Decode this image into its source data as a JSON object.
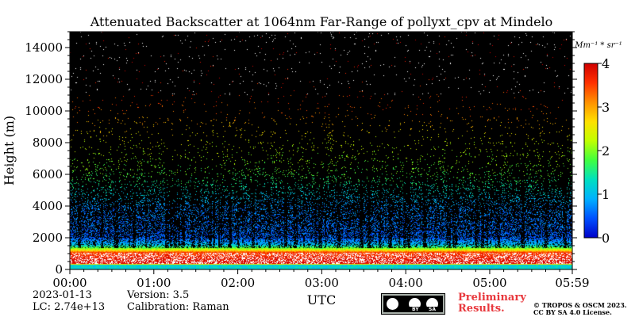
{
  "chart_data": {
    "type": "heatmap",
    "title": "Attenuated Backscatter at 1064nm Far-Range of pollyxt_cpv at Mindelo",
    "xlabel": "UTC",
    "ylabel": "Height (m)",
    "x_ticks": [
      "00:00",
      "01:00",
      "02:00",
      "03:00",
      "04:00",
      "05:00",
      "05:59"
    ],
    "x_range": [
      "00:00",
      "05:59"
    ],
    "y_ticks": [
      0,
      2000,
      4000,
      6000,
      8000,
      10000,
      12000,
      14000
    ],
    "ylim": [
      0,
      15000
    ],
    "colorbar": {
      "label": "Mm⁻¹ * sr⁻¹",
      "ticks": [
        0,
        1,
        2,
        3,
        4
      ],
      "range": [
        0,
        4
      ],
      "colormap": [
        "#0000c8",
        "#0050ff",
        "#00b0ff",
        "#00e0c0",
        "#40ff40",
        "#c0ff00",
        "#ffe000",
        "#ff9000",
        "#ff3000",
        "#d00000"
      ]
    },
    "profile": [
      {
        "height": 0,
        "value": 1.2
      },
      {
        "height": 300,
        "value": 1.2
      },
      {
        "height": 400,
        "value": 4.0
      },
      {
        "height": 1100,
        "value": 3.5
      },
      {
        "height": 1300,
        "value": 2.2
      },
      {
        "height": 1600,
        "value": 1.0
      },
      {
        "height": 2000,
        "value": 0.5
      },
      {
        "height": 4000,
        "value": 0.7
      },
      {
        "height": 6000,
        "value": 1.8
      },
      {
        "height": 8000,
        "value": 2.3
      },
      {
        "height": 10000,
        "value": 3.3
      },
      {
        "height": 12000,
        "value": 3.8
      },
      {
        "height": 15000,
        "value": 4.0
      }
    ],
    "background_color": "#000000",
    "grid": false
  },
  "footer": {
    "date": "2023-01-13",
    "lc": "LC: 2.74e+13",
    "version": "Version: 3.5",
    "calibration": "Calibration: Raman",
    "preliminary_line1": "Preliminary",
    "preliminary_line2": "Results.",
    "copyright_line1": "© TROPOS & OSCM 2023.",
    "copyright_line2": "CC BY SA 4.0 License.",
    "license_badge": "cc-by-sa-badge",
    "license_by": "BY",
    "license_sa": "SA"
  }
}
